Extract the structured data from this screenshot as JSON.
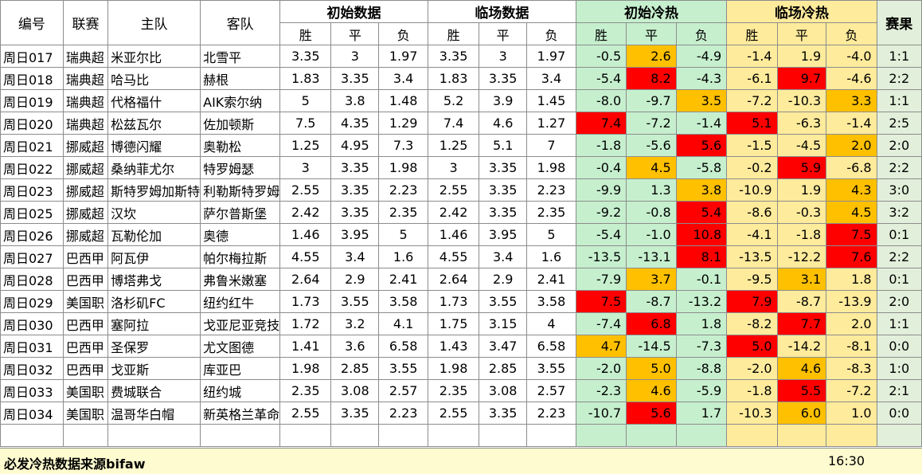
{
  "colors": {
    "green_band": "#c6efce",
    "yellow_band": "#ffeb9c",
    "result_band": "#e2efda",
    "hot_red": "#ff0000",
    "warm_orange": "#ffc000",
    "footer_bg": "#fefbd0"
  },
  "header": {
    "id": "编号",
    "league": "联赛",
    "home": "主队",
    "away": "客队",
    "init_data": "初始数据",
    "live_data": "临场数据",
    "init_heat": "初始冷热",
    "live_heat": "临场冷热",
    "result": "赛果",
    "win": "胜",
    "draw": "平",
    "loss": "负"
  },
  "rows": [
    {
      "id": "周日017",
      "league": "瑞典超",
      "home": "米亚尔比",
      "away": "北雪平",
      "o": [
        "3.35",
        "3",
        "1.97"
      ],
      "l": [
        "3.35",
        "3",
        "1.97"
      ],
      "ic": [
        "-0.5",
        "2.6",
        "-4.9"
      ],
      "icc": [
        "",
        "orange",
        ""
      ],
      "lc": [
        "-1.4",
        "1.9",
        "-4.0"
      ],
      "lcc": [
        "",
        "",
        ""
      ],
      "res": "1:1"
    },
    {
      "id": "周日018",
      "league": "瑞典超",
      "home": "哈马比",
      "away": "赫根",
      "o": [
        "1.83",
        "3.35",
        "3.4"
      ],
      "l": [
        "1.83",
        "3.35",
        "3.4"
      ],
      "ic": [
        "-5.4",
        "8.2",
        "-4.3"
      ],
      "icc": [
        "",
        "red",
        ""
      ],
      "lc": [
        "-6.1",
        "9.7",
        "-4.6"
      ],
      "lcc": [
        "",
        "red",
        ""
      ],
      "res": "2:2"
    },
    {
      "id": "周日019",
      "league": "瑞典超",
      "home": "代格福什",
      "away": "AIK索尔纳",
      "o": [
        "5",
        "3.8",
        "1.48"
      ],
      "l": [
        "5.2",
        "3.9",
        "1.45"
      ],
      "ic": [
        "-8.0",
        "-9.7",
        "3.5"
      ],
      "icc": [
        "",
        "",
        "orange"
      ],
      "lc": [
        "-7.2",
        "-10.3",
        "3.3"
      ],
      "lcc": [
        "",
        "",
        "orange"
      ],
      "res": "1:1"
    },
    {
      "id": "周日020",
      "league": "瑞典超",
      "home": "松兹瓦尔",
      "away": "佐加顿斯",
      "o": [
        "7.5",
        "4.35",
        "1.29"
      ],
      "l": [
        "7.4",
        "4.6",
        "1.27"
      ],
      "ic": [
        "7.4",
        "-7.2",
        "-1.4"
      ],
      "icc": [
        "red",
        "",
        ""
      ],
      "lc": [
        "5.1",
        "-6.3",
        "-1.4"
      ],
      "lcc": [
        "red",
        "",
        ""
      ],
      "res": "2:5"
    },
    {
      "id": "周日021",
      "league": "挪威超",
      "home": "博德闪耀",
      "away": "奥勒松",
      "o": [
        "1.25",
        "4.95",
        "7.3"
      ],
      "l": [
        "1.25",
        "5.1",
        "7"
      ],
      "ic": [
        "-1.8",
        "-5.6",
        "5.6"
      ],
      "icc": [
        "",
        "",
        "red"
      ],
      "lc": [
        "-1.5",
        "-4.5",
        "2.0"
      ],
      "lcc": [
        "",
        "",
        "orange"
      ],
      "res": "2:0"
    },
    {
      "id": "周日022",
      "league": "挪威超",
      "home": "桑纳菲尤尔",
      "away": "特罗姆瑟",
      "o": [
        "3",
        "3.35",
        "1.98"
      ],
      "l": [
        "3",
        "3.35",
        "1.98"
      ],
      "ic": [
        "-0.4",
        "4.5",
        "-5.8"
      ],
      "icc": [
        "",
        "orange",
        ""
      ],
      "lc": [
        "-0.2",
        "5.9",
        "-6.8"
      ],
      "lcc": [
        "",
        "red",
        ""
      ],
      "res": "2:2"
    },
    {
      "id": "周日023",
      "league": "挪威超",
      "home": "斯特罗姆加斯特",
      "away": "利勒斯特罗姆",
      "o": [
        "2.55",
        "3.35",
        "2.23"
      ],
      "l": [
        "2.55",
        "3.35",
        "2.23"
      ],
      "ic": [
        "-9.9",
        "1.3",
        "3.8"
      ],
      "icc": [
        "",
        "",
        "orange"
      ],
      "lc": [
        "-10.9",
        "1.9",
        "4.3"
      ],
      "lcc": [
        "",
        "",
        "orange"
      ],
      "res": "3:0"
    },
    {
      "id": "周日025",
      "league": "挪威超",
      "home": "汉坎",
      "away": "萨尔普斯堡",
      "o": [
        "2.42",
        "3.35",
        "2.35"
      ],
      "l": [
        "2.42",
        "3.35",
        "2.35"
      ],
      "ic": [
        "-9.2",
        "-0.8",
        "5.4"
      ],
      "icc": [
        "",
        "",
        "red"
      ],
      "lc": [
        "-8.6",
        "-0.3",
        "4.5"
      ],
      "lcc": [
        "",
        "",
        "orange"
      ],
      "res": "3:2"
    },
    {
      "id": "周日026",
      "league": "挪威超",
      "home": "瓦勒伦加",
      "away": "奥德",
      "o": [
        "1.46",
        "3.95",
        "5"
      ],
      "l": [
        "1.46",
        "3.95",
        "5"
      ],
      "ic": [
        "-5.4",
        "-1.0",
        "10.8"
      ],
      "icc": [
        "",
        "",
        "red"
      ],
      "lc": [
        "-4.1",
        "-1.8",
        "7.5"
      ],
      "lcc": [
        "",
        "",
        "red"
      ],
      "res": "0:1"
    },
    {
      "id": "周日027",
      "league": "巴西甲",
      "home": "阿瓦伊",
      "away": "帕尔梅拉斯",
      "o": [
        "4.55",
        "3.4",
        "1.6"
      ],
      "l": [
        "4.55",
        "3.4",
        "1.6"
      ],
      "ic": [
        "-13.5",
        "-13.1",
        "8.1"
      ],
      "icc": [
        "",
        "",
        "red"
      ],
      "lc": [
        "-13.5",
        "-12.2",
        "7.6"
      ],
      "lcc": [
        "",
        "",
        "red"
      ],
      "res": "2:2"
    },
    {
      "id": "周日028",
      "league": "巴西甲",
      "home": "博塔弗戈",
      "away": "弗鲁米嫩塞",
      "o": [
        "2.64",
        "2.9",
        "2.41"
      ],
      "l": [
        "2.64",
        "2.9",
        "2.41"
      ],
      "ic": [
        "-7.9",
        "3.7",
        "-0.1"
      ],
      "icc": [
        "",
        "orange",
        ""
      ],
      "lc": [
        "-9.5",
        "3.1",
        "1.8"
      ],
      "lcc": [
        "",
        "orange",
        ""
      ],
      "res": "0:1"
    },
    {
      "id": "周日029",
      "league": "美国职",
      "home": "洛杉矶FC",
      "away": "纽约红牛",
      "o": [
        "1.73",
        "3.55",
        "3.58"
      ],
      "l": [
        "1.73",
        "3.55",
        "3.58"
      ],
      "ic": [
        "7.5",
        "-8.7",
        "-13.2"
      ],
      "icc": [
        "red",
        "",
        ""
      ],
      "lc": [
        "7.9",
        "-8.7",
        "-13.9"
      ],
      "lcc": [
        "red",
        "",
        ""
      ],
      "res": "2:0"
    },
    {
      "id": "周日030",
      "league": "巴西甲",
      "home": "塞阿拉",
      "away": "戈亚尼亚竞技",
      "o": [
        "1.72",
        "3.2",
        "4.1"
      ],
      "l": [
        "1.75",
        "3.15",
        "4"
      ],
      "ic": [
        "-7.4",
        "6.8",
        "1.8"
      ],
      "icc": [
        "",
        "red",
        ""
      ],
      "lc": [
        "-8.2",
        "7.7",
        "2.0"
      ],
      "lcc": [
        "",
        "red",
        ""
      ],
      "res": "1:1"
    },
    {
      "id": "周日031",
      "league": "巴西甲",
      "home": "圣保罗",
      "away": "尤文图德",
      "o": [
        "1.41",
        "3.6",
        "6.58"
      ],
      "l": [
        "1.43",
        "3.47",
        "6.58"
      ],
      "ic": [
        "4.7",
        "-14.5",
        "-7.3"
      ],
      "icc": [
        "orange",
        "",
        ""
      ],
      "lc": [
        "5.0",
        "-14.2",
        "-8.1"
      ],
      "lcc": [
        "red",
        "",
        ""
      ],
      "res": "0:0"
    },
    {
      "id": "周日032",
      "league": "巴西甲",
      "home": "戈亚斯",
      "away": "库亚巴",
      "o": [
        "1.98",
        "2.85",
        "3.55"
      ],
      "l": [
        "1.98",
        "2.85",
        "3.55"
      ],
      "ic": [
        "-2.0",
        "5.0",
        "-8.8"
      ],
      "icc": [
        "",
        "orange",
        ""
      ],
      "lc": [
        "-2.0",
        "4.6",
        "-8.3"
      ],
      "lcc": [
        "",
        "orange",
        ""
      ],
      "res": "1:0"
    },
    {
      "id": "周日033",
      "league": "美国职",
      "home": "费城联合",
      "away": "纽约城",
      "o": [
        "2.35",
        "3.08",
        "2.57"
      ],
      "l": [
        "2.35",
        "3.08",
        "2.57"
      ],
      "ic": [
        "-2.3",
        "4.6",
        "-5.9"
      ],
      "icc": [
        "",
        "orange",
        ""
      ],
      "lc": [
        "-1.8",
        "5.5",
        "-7.2"
      ],
      "lcc": [
        "",
        "red",
        ""
      ],
      "res": "2:1"
    },
    {
      "id": "周日034",
      "league": "美国职",
      "home": "温哥华白帽",
      "away": "新英格兰革命",
      "o": [
        "2.55",
        "3.35",
        "2.23"
      ],
      "l": [
        "2.55",
        "3.35",
        "2.23"
      ],
      "ic": [
        "-10.7",
        "5.6",
        "1.7"
      ],
      "icc": [
        "",
        "red",
        ""
      ],
      "lc": [
        "-10.3",
        "6.0",
        "1.0"
      ],
      "lcc": [
        "",
        "orange",
        ""
      ],
      "res": "0:0"
    }
  ],
  "footer": {
    "source": "必发冷热数据来源bifaw",
    "time": "16:30"
  }
}
